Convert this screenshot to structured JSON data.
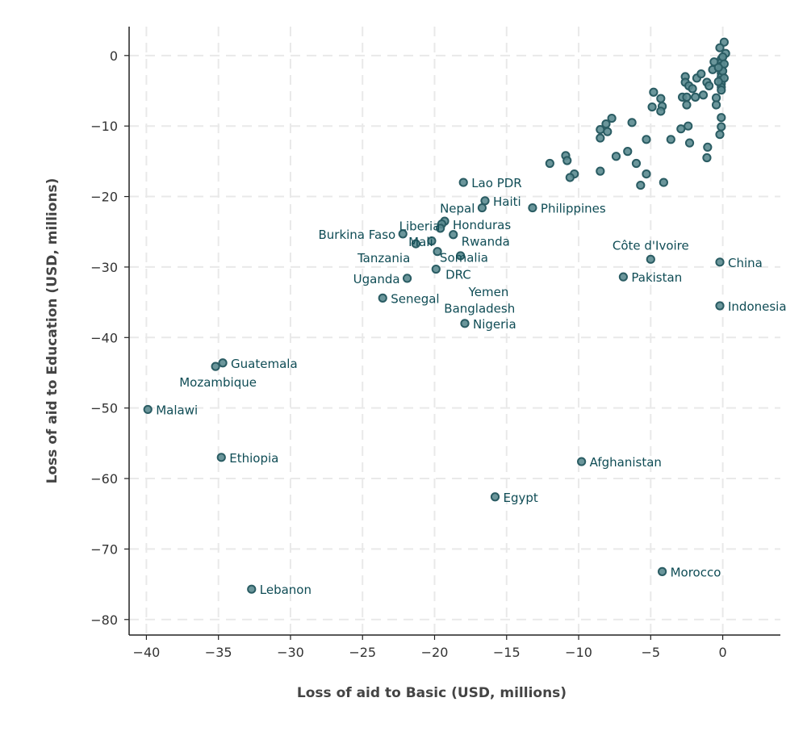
{
  "chart_data": {
    "type": "scatter",
    "title": "",
    "xlabel": "Loss of aid to Basic (USD, millions)",
    "ylabel": "Loss of aid to Education (USD, millions)",
    "xlim": [
      -41.2,
      4.0
    ],
    "ylim": [
      -82.2,
      4.1
    ],
    "xticks": [
      -40,
      -35,
      -30,
      -25,
      -20,
      -15,
      -10,
      -5,
      0
    ],
    "yticks": [
      0,
      -10,
      -20,
      -30,
      -40,
      -50,
      -60,
      -70,
      -80
    ],
    "grid": true,
    "colors": {
      "point_fill": "#5b8b90",
      "point_stroke": "#2a5c63",
      "label": "#0f4c55"
    },
    "labeled_points": [
      {
        "label": "Lao PDR",
        "x": -18.0,
        "y": -18.0,
        "pos": "right"
      },
      {
        "label": "Haiti",
        "x": -16.5,
        "y": -20.6,
        "pos": "right"
      },
      {
        "label": "Nepal",
        "x": -16.7,
        "y": -21.6,
        "pos": "left"
      },
      {
        "label": "Philippines",
        "x": -13.2,
        "y": -21.6,
        "pos": "right"
      },
      {
        "label": "Honduras",
        "x": -19.3,
        "y": -23.5,
        "pos": "right"
      },
      {
        "label": "Liberia",
        "x": -19.5,
        "y": -23.9,
        "pos": "upleft"
      },
      {
        "label": "Mali",
        "x": -19.6,
        "y": -24.5,
        "pos": "left"
      },
      {
        "label": "Burkina Faso",
        "x": -22.2,
        "y": -25.3,
        "pos": "left"
      },
      {
        "label": "Rwanda",
        "x": -18.7,
        "y": -25.4,
        "pos": "right"
      },
      {
        "label": "Tanzania",
        "x": -21.3,
        "y": -26.7,
        "pos": "downleft"
      },
      {
        "label": "Somalia",
        "x": -20.2,
        "y": -26.3,
        "pos": "right"
      },
      {
        "label": "DRC",
        "x": -19.8,
        "y": -27.8,
        "pos": "right"
      },
      {
        "label": "Yemen",
        "x": -18.2,
        "y": -28.4,
        "pos": "right"
      },
      {
        "label": "Bangladesh",
        "x": -19.9,
        "y": -30.3,
        "pos": "right"
      },
      {
        "label": "Uganda",
        "x": -21.9,
        "y": -31.6,
        "pos": "left"
      },
      {
        "label": "Senegal",
        "x": -23.6,
        "y": -34.4,
        "pos": "right"
      },
      {
        "label": "Nigeria",
        "x": -17.9,
        "y": -38.0,
        "pos": "right"
      },
      {
        "label": "Côte d'Ivoire",
        "x": -5.0,
        "y": -28.9,
        "pos": "above"
      },
      {
        "label": "Pakistan",
        "x": -6.9,
        "y": -31.4,
        "pos": "right"
      },
      {
        "label": "China",
        "x": -0.2,
        "y": -29.3,
        "pos": "right"
      },
      {
        "label": "Indonesia",
        "x": -0.2,
        "y": -35.5,
        "pos": "right"
      },
      {
        "label": "Guatemala",
        "x": -34.7,
        "y": -43.6,
        "pos": "right"
      },
      {
        "label": "Mozambique",
        "x": -35.2,
        "y": -44.1,
        "pos": "below"
      },
      {
        "label": "Malawi",
        "x": -39.9,
        "y": -50.2,
        "pos": "right"
      },
      {
        "label": "Ethiopia",
        "x": -34.8,
        "y": -57.0,
        "pos": "right"
      },
      {
        "label": "Afghanistan",
        "x": -9.8,
        "y": -57.6,
        "pos": "right"
      },
      {
        "label": "Egypt",
        "x": -15.8,
        "y": -62.6,
        "pos": "right"
      },
      {
        "label": "Morocco",
        "x": -4.2,
        "y": -73.2,
        "pos": "right"
      },
      {
        "label": "Lebanon",
        "x": -32.7,
        "y": -75.7,
        "pos": "right"
      }
    ],
    "points": [
      [
        0.1,
        1.9
      ],
      [
        -0.2,
        1.1
      ],
      [
        0.2,
        0.3
      ],
      [
        -0.6,
        -0.9
      ],
      [
        -0.7,
        -2.0
      ],
      [
        -0.1,
        -0.5
      ],
      [
        -0.1,
        -1.0
      ],
      [
        -0.1,
        -1.5
      ],
      [
        -0.1,
        -2.0
      ],
      [
        -0.1,
        -2.5
      ],
      [
        -0.1,
        -3.0
      ],
      [
        -0.1,
        -3.5
      ],
      [
        -0.1,
        -4.0
      ],
      [
        -0.1,
        -4.5
      ],
      [
        0.0,
        -0.2
      ],
      [
        0.1,
        -1.2
      ],
      [
        0.0,
        -2.2
      ],
      [
        0.1,
        -3.2
      ],
      [
        -0.3,
        -1.7
      ],
      [
        -0.3,
        -3.7
      ],
      [
        -0.1,
        -4.9
      ],
      [
        -0.45,
        -6.0
      ],
      [
        -0.45,
        -7.0
      ],
      [
        -0.1,
        -8.8
      ],
      [
        -0.1,
        -10.1
      ],
      [
        -0.2,
        -11.2
      ],
      [
        -2.6,
        -3.0
      ],
      [
        -2.6,
        -3.8
      ],
      [
        -2.35,
        -4.3
      ],
      [
        -2.1,
        -4.7
      ],
      [
        -1.8,
        -3.2
      ],
      [
        -1.5,
        -2.6
      ],
      [
        -1.1,
        -3.8
      ],
      [
        -0.95,
        -4.3
      ],
      [
        -2.8,
        -5.9
      ],
      [
        -2.5,
        -5.9
      ],
      [
        -1.9,
        -5.9
      ],
      [
        -1.35,
        -5.6
      ],
      [
        -2.5,
        -7.0
      ],
      [
        -4.8,
        -5.2
      ],
      [
        -4.3,
        -6.1
      ],
      [
        -4.9,
        -7.3
      ],
      [
        -4.2,
        -7.2
      ],
      [
        -4.3,
        -7.9
      ],
      [
        -7.7,
        -8.9
      ],
      [
        -8.1,
        -9.7
      ],
      [
        -8.5,
        -10.5
      ],
      [
        -8.0,
        -10.8
      ],
      [
        -8.5,
        -11.7
      ],
      [
        -6.3,
        -9.5
      ],
      [
        -5.3,
        -11.9
      ],
      [
        -3.6,
        -11.9
      ],
      [
        -2.9,
        -10.4
      ],
      [
        -2.4,
        -10.0
      ],
      [
        -2.3,
        -12.4
      ],
      [
        -1.05,
        -13.0
      ],
      [
        -1.1,
        -14.5
      ],
      [
        -6.6,
        -13.6
      ],
      [
        -7.4,
        -14.3
      ],
      [
        -6.0,
        -15.3
      ],
      [
        -5.3,
        -16.8
      ],
      [
        -4.1,
        -18.0
      ],
      [
        -5.7,
        -18.4
      ],
      [
        -8.5,
        -16.4
      ],
      [
        -10.9,
        -14.2
      ],
      [
        -10.8,
        -14.9
      ],
      [
        -12.0,
        -15.3
      ],
      [
        -10.3,
        -16.8
      ],
      [
        -10.6,
        -17.3
      ]
    ]
  }
}
